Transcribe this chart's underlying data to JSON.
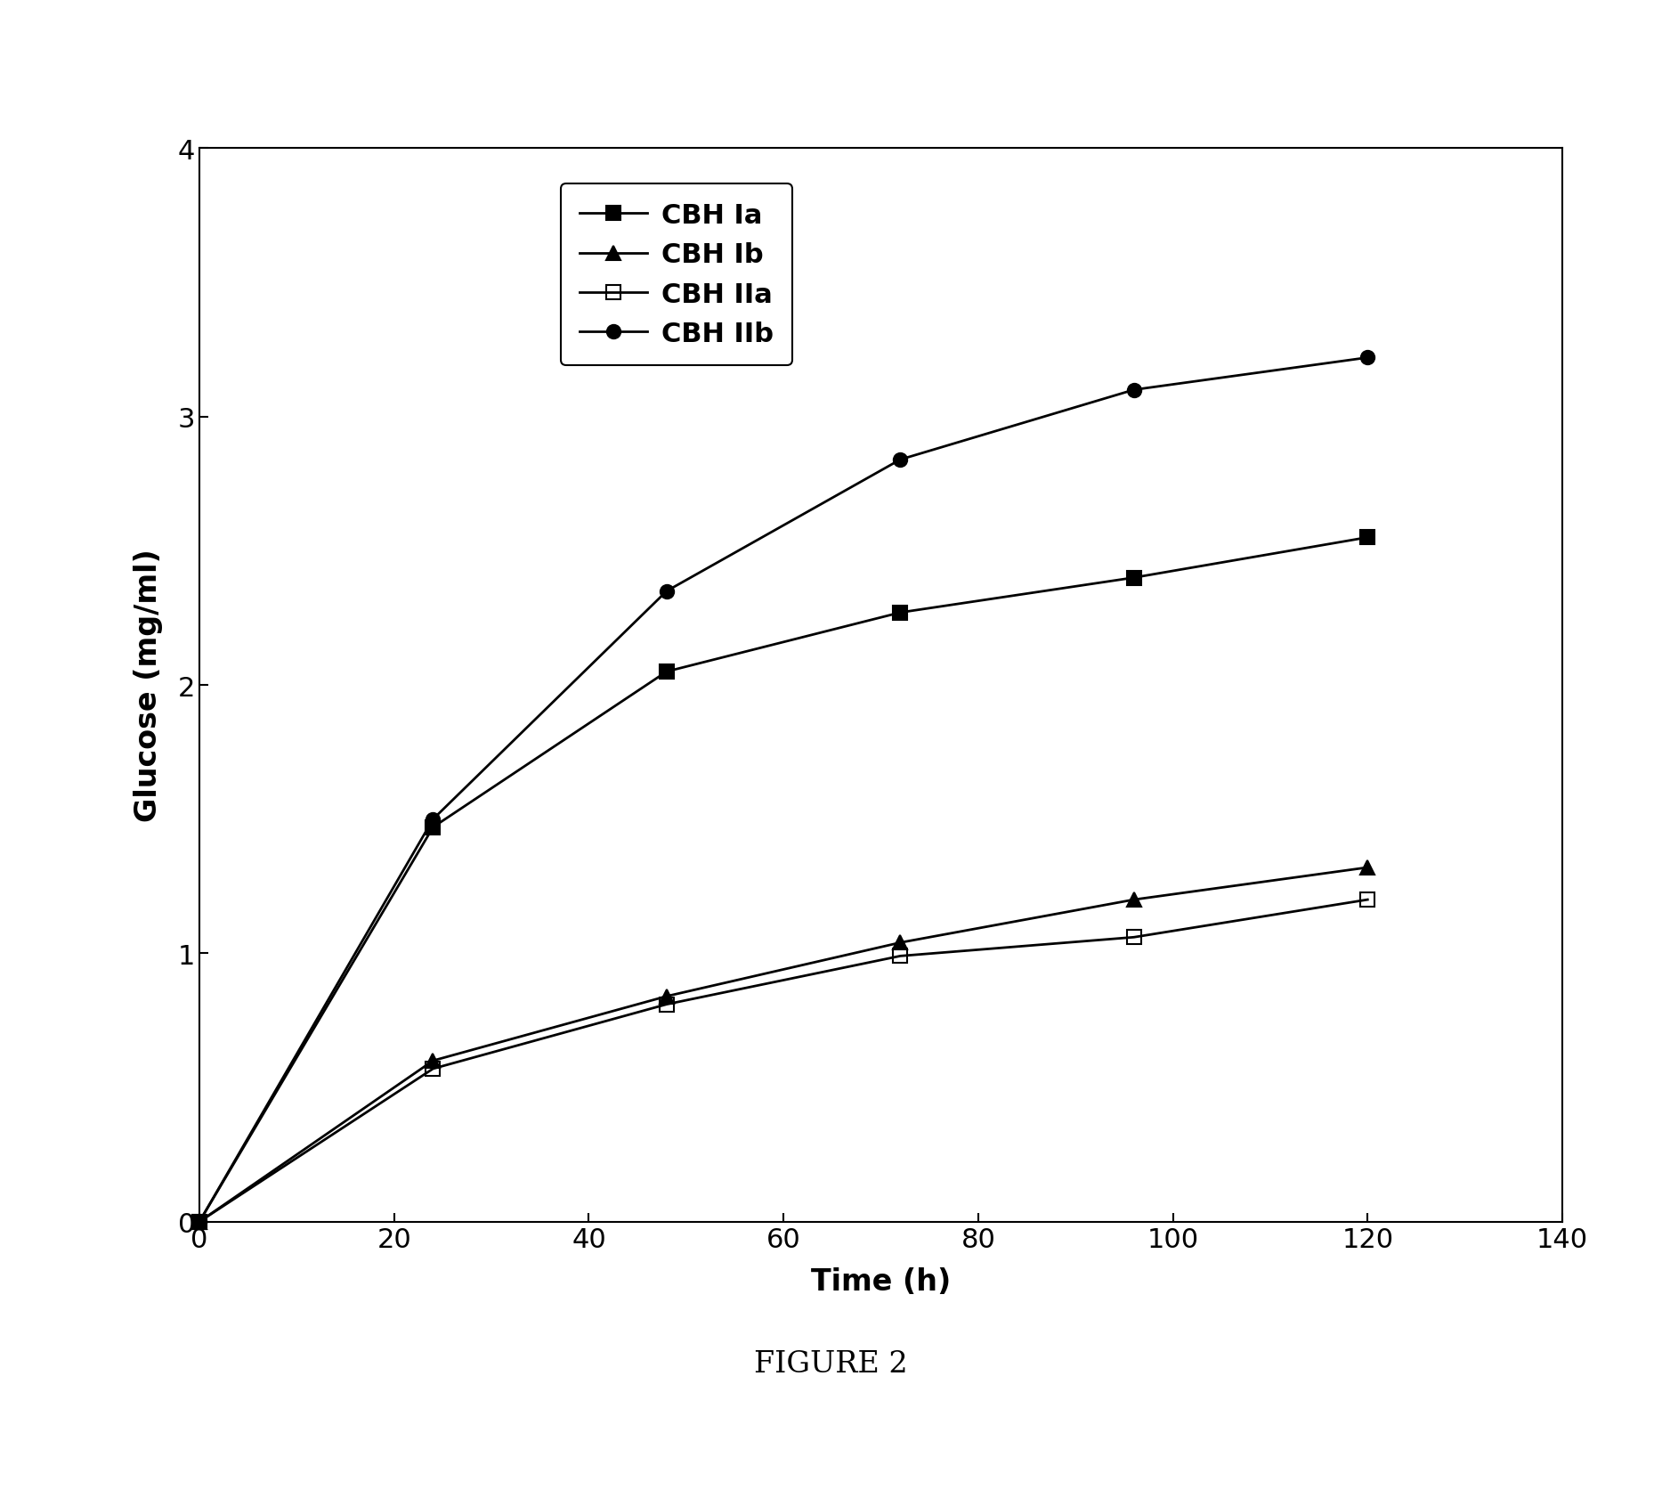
{
  "series": [
    {
      "label": "CBH Ia",
      "x": [
        0,
        24,
        48,
        72,
        96,
        120
      ],
      "y": [
        0,
        1.47,
        2.05,
        2.27,
        2.4,
        2.55
      ],
      "marker": "s",
      "fillstyle": "full",
      "color": "black",
      "markersize": 11
    },
    {
      "label": "CBH Ib",
      "x": [
        0,
        24,
        48,
        72,
        96,
        120
      ],
      "y": [
        0,
        0.6,
        0.84,
        1.04,
        1.2,
        1.32
      ],
      "marker": "^",
      "fillstyle": "full",
      "color": "black",
      "markersize": 11
    },
    {
      "label": "CBH IIa",
      "x": [
        0,
        24,
        48,
        72,
        96,
        120
      ],
      "y": [
        0,
        0.57,
        0.81,
        0.99,
        1.06,
        1.2
      ],
      "marker": "s",
      "fillstyle": "none",
      "color": "black",
      "markersize": 11
    },
    {
      "label": "CBH IIb",
      "x": [
        0,
        24,
        48,
        72,
        96,
        120
      ],
      "y": [
        0,
        1.5,
        2.35,
        2.84,
        3.1,
        3.22
      ],
      "marker": "o",
      "fillstyle": "full",
      "color": "black",
      "markersize": 11
    }
  ],
  "xlabel": "Time (h)",
  "ylabel": "Glucose (mg/ml)",
  "xlim": [
    0,
    140
  ],
  "ylim": [
    0,
    4
  ],
  "xticks": [
    0,
    20,
    40,
    60,
    80,
    100,
    120,
    140
  ],
  "yticks": [
    0,
    1,
    2,
    3,
    4
  ],
  "figure_caption": "FIGURE 2",
  "linewidth": 2.0,
  "markersize": 11,
  "tick_fontsize": 22,
  "label_fontsize": 24,
  "legend_fontsize": 22,
  "caption_fontsize": 24,
  "background_color": "#ffffff"
}
